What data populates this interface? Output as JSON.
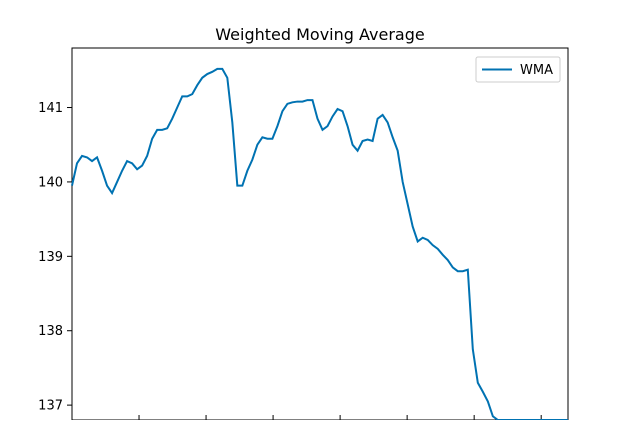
{
  "chart_data": {
    "type": "line",
    "title": "Weighted Moving Average",
    "xlabel": "",
    "ylabel": "",
    "x": [
      0,
      5,
      10,
      15,
      20,
      25,
      30,
      35,
      40,
      45,
      50,
      55,
      60,
      65,
      70,
      75,
      80,
      85,
      90,
      95,
      100,
      105,
      110,
      115,
      120,
      125,
      130,
      135,
      140,
      145,
      150,
      155,
      160,
      165,
      170,
      175,
      180,
      185,
      190,
      195,
      200,
      205,
      210,
      215,
      220,
      225,
      230,
      235,
      240,
      245,
      250,
      255,
      260,
      265,
      270,
      275,
      280,
      285,
      290,
      295,
      300,
      305,
      310,
      315,
      320,
      325,
      330,
      335,
      340,
      345,
      350,
      355,
      360,
      365,
      370,
      375,
      380,
      385,
      390,
      395,
      400,
      405,
      410,
      415,
      420,
      425,
      430,
      435,
      440,
      445,
      450,
      455,
      460,
      465,
      470,
      475,
      480,
      485,
      490,
      495
    ],
    "series": [
      {
        "name": "WMA",
        "values": [
          139.95,
          140.25,
          140.35,
          140.33,
          140.28,
          140.33,
          140.15,
          139.95,
          139.85,
          140.0,
          140.15,
          140.28,
          140.25,
          140.17,
          140.22,
          140.35,
          140.58,
          140.7,
          140.7,
          140.72,
          140.85,
          141.0,
          141.15,
          141.15,
          141.18,
          141.3,
          141.4,
          141.45,
          141.48,
          141.52,
          141.52,
          141.4,
          140.8,
          139.95,
          139.95,
          140.15,
          140.3,
          140.5,
          140.6,
          140.58,
          140.58,
          140.75,
          140.95,
          141.05,
          141.07,
          141.08,
          141.08,
          141.1,
          141.1,
          140.85,
          140.7,
          140.75,
          140.88,
          140.98,
          140.95,
          140.75,
          140.5,
          140.42,
          140.55,
          140.57,
          140.55,
          140.85,
          140.9,
          140.8,
          140.6,
          140.42,
          140.0,
          139.7,
          139.4,
          139.2,
          139.25,
          139.22,
          139.15,
          139.1,
          139.02,
          138.95,
          138.85,
          138.8,
          138.8,
          138.82,
          137.75,
          137.3,
          137.18,
          137.05,
          136.85,
          136.8,
          136.8,
          136.8,
          136.8,
          136.8,
          136.8,
          136.8,
          136.8,
          136.8,
          136.8,
          136.8,
          136.8,
          136.8,
          136.8,
          136.8
        ]
      }
    ],
    "ylim": [
      136.8,
      141.8
    ],
    "yticks": [
      {
        "value": 137,
        "label": "137"
      },
      {
        "value": 138,
        "label": "138"
      },
      {
        "value": 139,
        "label": "139"
      },
      {
        "value": 140,
        "label": "140"
      },
      {
        "value": 141,
        "label": "141"
      }
    ],
    "grid": false,
    "legend_position": "top-right",
    "colors": {
      "line": "#0072b2",
      "axis": "#000000"
    }
  }
}
